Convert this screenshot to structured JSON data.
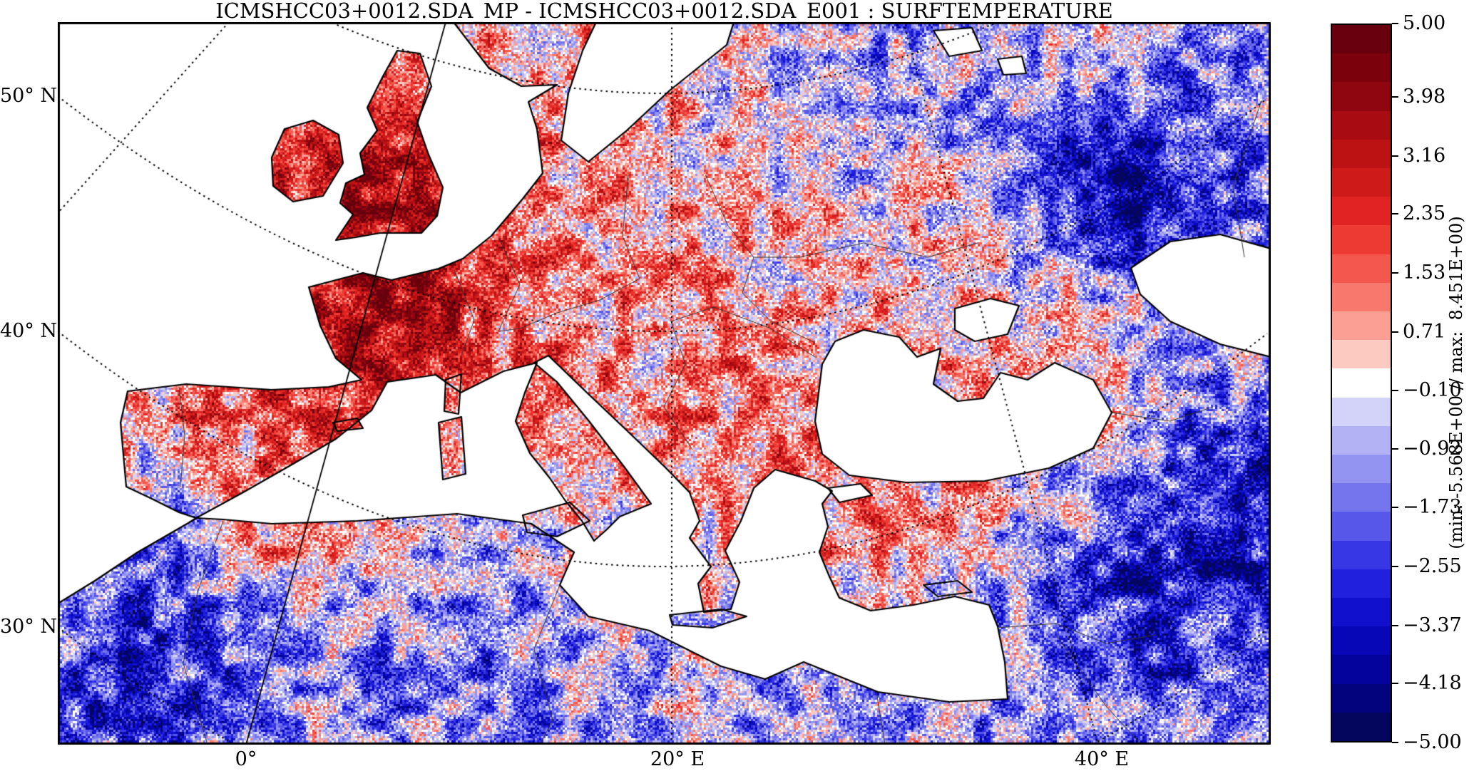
{
  "title": "ICMSHCC03+0012.SDA_MP - ICMSHCC03+0012.SDA_E001 : SURFTEMPERATURE",
  "axes": {
    "lat_labels": [
      {
        "text": "50° N",
        "value": 50
      },
      {
        "text": "40° N",
        "value": 40
      },
      {
        "text": "30° N",
        "value": 30
      }
    ],
    "lon_labels": [
      {
        "text": "0°",
        "value": 0
      },
      {
        "text": "20° E",
        "value": 20
      },
      {
        "text": "40° E",
        "value": 40
      }
    ]
  },
  "colorbar": {
    "vmin": -5.0,
    "vmax": 5.0,
    "n_levels": 25,
    "ticks": [
      {
        "text": "5.00",
        "value": 5.0
      },
      {
        "text": "3.98",
        "value": 3.98
      },
      {
        "text": "3.16",
        "value": 3.16
      },
      {
        "text": "2.35",
        "value": 2.35
      },
      {
        "text": "1.53",
        "value": 1.53
      },
      {
        "text": "0.71",
        "value": 0.71
      },
      {
        "text": "−0.10",
        "value": -0.1
      },
      {
        "text": "−0.92",
        "value": -0.92
      },
      {
        "text": "−1.73",
        "value": -1.73
      },
      {
        "text": "−2.55",
        "value": -2.55
      },
      {
        "text": "−3.37",
        "value": -3.37
      },
      {
        "text": "−4.18",
        "value": -4.18
      },
      {
        "text": "−5.00",
        "value": -5.0
      }
    ],
    "range_label": "(min: -5.568E+00 // max:  8.451E+00)",
    "colormap_stops": [
      {
        "v": 5.0,
        "hex": "#5e000b"
      },
      {
        "v": 4.2,
        "hex": "#85030f"
      },
      {
        "v": 3.5,
        "hex": "#ae0e13"
      },
      {
        "v": 3.0,
        "hex": "#c61616"
      },
      {
        "v": 2.5,
        "hex": "#de2020"
      },
      {
        "v": 2.1,
        "hex": "#eb332d"
      },
      {
        "v": 1.7,
        "hex": "#f35046"
      },
      {
        "v": 1.3,
        "hex": "#f87064"
      },
      {
        "v": 0.9,
        "hex": "#fb948a"
      },
      {
        "v": 0.6,
        "hex": "#fcb4aa"
      },
      {
        "v": 0.35,
        "hex": "#fdd0c8"
      },
      {
        "v": 0.15,
        "hex": "#fee9e4"
      },
      {
        "v": 0.0,
        "hex": "#ffffff"
      },
      {
        "v": -0.15,
        "hex": "#eaeafc"
      },
      {
        "v": -0.35,
        "hex": "#d8d8fa"
      },
      {
        "v": -0.6,
        "hex": "#c4c4f7"
      },
      {
        "v": -0.9,
        "hex": "#aaaaf4"
      },
      {
        "v": -1.3,
        "hex": "#8c8cf0"
      },
      {
        "v": -1.7,
        "hex": "#6e6eec"
      },
      {
        "v": -2.1,
        "hex": "#5050e8"
      },
      {
        "v": -2.5,
        "hex": "#3030e6"
      },
      {
        "v": -3.0,
        "hex": "#1616d8"
      },
      {
        "v": -3.5,
        "hex": "#0808be"
      },
      {
        "v": -4.0,
        "hex": "#04049c"
      },
      {
        "v": -4.5,
        "hex": "#030376"
      },
      {
        "v": -5.0,
        "hex": "#05084e"
      }
    ]
  },
  "chart_data": {
    "type": "heatmap",
    "title": "ICMSHCC03+0012.SDA_MP - ICMSHCC03+0012.SDA_E001 : SURFTEMPERATURE",
    "field": "SURFTEMPERATURE difference (two model runs)",
    "region": "Europe / Mediterranean / North Africa map on conic projection",
    "colorbar_tick_values": [
      5.0,
      3.98,
      3.16,
      2.35,
      1.53,
      0.71,
      -0.1,
      -0.92,
      -1.73,
      -2.55,
      -3.37,
      -4.18,
      -5.0
    ],
    "colorbar_range": [
      -5.0,
      5.0
    ],
    "annotated_min": "-5.568E+00",
    "annotated_max": "8.451E+00",
    "x_ticks": [
      "0°",
      "20° E",
      "40° E"
    ],
    "y_ticks": [
      "50° N",
      "40° N",
      "30° N"
    ],
    "legend_position": "right colorbar",
    "palette": "blue-white-red diverging, 25 discrete levels"
  }
}
